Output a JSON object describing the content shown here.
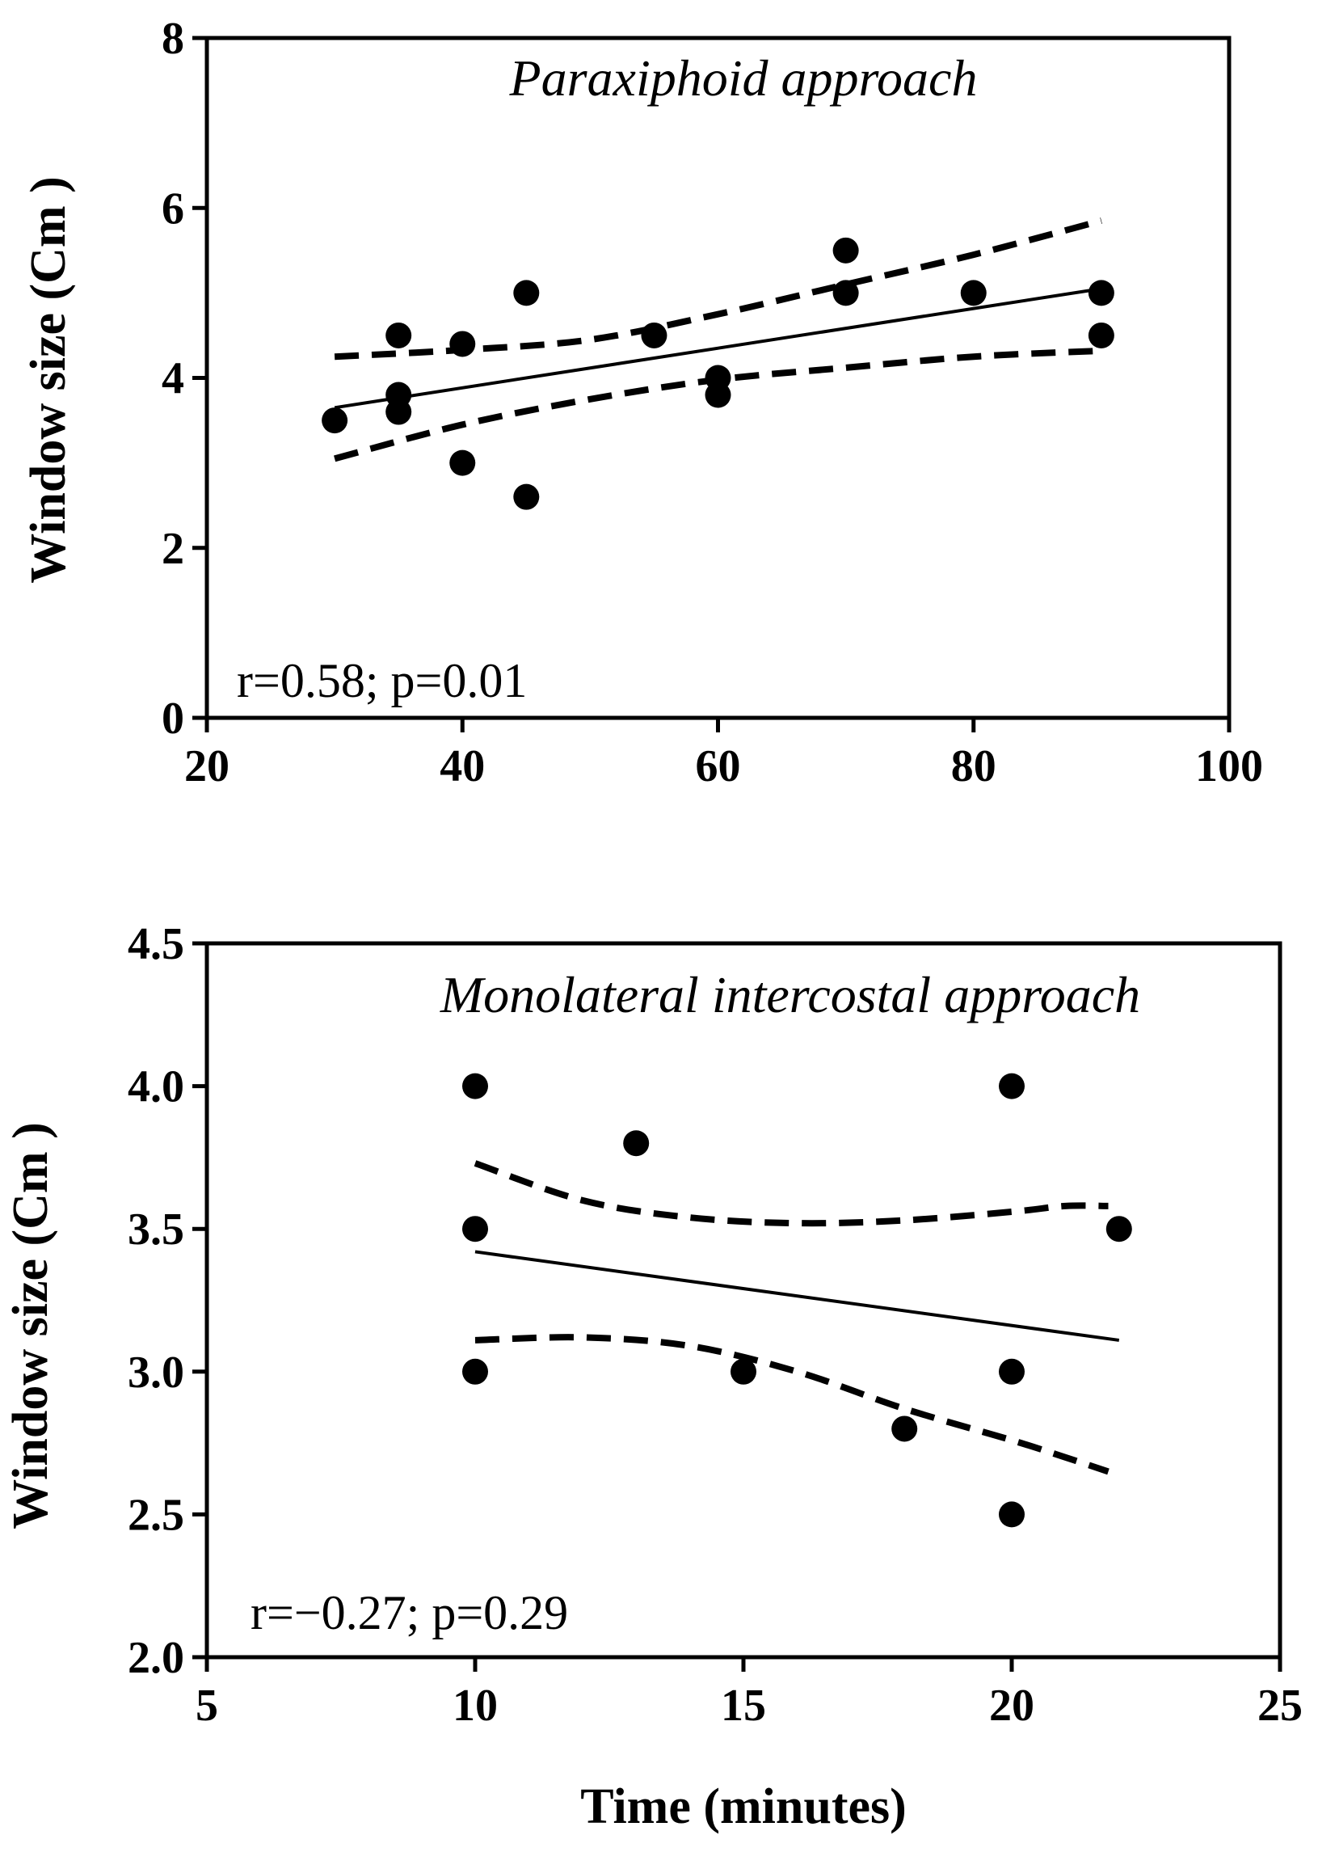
{
  "chart_data": [
    {
      "type": "scatter",
      "title": "Paraxiphoid approach",
      "xlabel": "",
      "ylabel": "Window size (Cm  )",
      "xlim": [
        20,
        100
      ],
      "ylim": [
        0,
        8
      ],
      "xticks": [
        20,
        40,
        60,
        80,
        100
      ],
      "yticks": [
        0,
        2,
        4,
        6,
        8
      ],
      "xtick_labels": [
        "20",
        "40",
        "60",
        "80",
        "100"
      ],
      "ytick_labels": [
        "0",
        "2",
        "4",
        "6",
        "8"
      ],
      "annotation": "r=0.58; p=0.01",
      "points": [
        [
          30,
          3.5
        ],
        [
          35,
          4.5
        ],
        [
          35,
          3.8
        ],
        [
          35,
          3.6
        ],
        [
          40,
          4.4
        ],
        [
          40,
          3.0
        ],
        [
          45,
          5.0
        ],
        [
          45,
          2.6
        ],
        [
          55,
          4.5
        ],
        [
          60,
          4.0
        ],
        [
          60,
          3.8
        ],
        [
          70,
          5.5
        ],
        [
          70,
          5.0
        ],
        [
          80,
          5.0
        ],
        [
          90,
          5.0
        ],
        [
          90,
          4.5
        ]
      ],
      "regression_line": [
        [
          30,
          3.65
        ],
        [
          90,
          5.05
        ]
      ],
      "ci_upper": [
        [
          30,
          4.25
        ],
        [
          40,
          4.33
        ],
        [
          50,
          4.45
        ],
        [
          60,
          4.75
        ],
        [
          70,
          5.1
        ],
        [
          80,
          5.45
        ],
        [
          90,
          5.85
        ]
      ],
      "ci_lower": [
        [
          30,
          3.05
        ],
        [
          40,
          3.45
        ],
        [
          50,
          3.75
        ],
        [
          60,
          3.98
        ],
        [
          70,
          4.12
        ],
        [
          80,
          4.25
        ],
        [
          90,
          4.32
        ]
      ]
    },
    {
      "type": "scatter",
      "title": "Monolateral intercostal approach",
      "xlabel": "Time (minutes)",
      "ylabel": "Window size (Cm  )",
      "xlim": [
        5,
        25
      ],
      "ylim": [
        2.0,
        4.5
      ],
      "xticks": [
        5,
        10,
        15,
        20,
        25
      ],
      "yticks": [
        2.0,
        2.5,
        3.0,
        3.5,
        4.0,
        4.5
      ],
      "xtick_labels": [
        "5",
        "10",
        "15",
        "20",
        "25"
      ],
      "ytick_labels": [
        "2.0",
        "2.5",
        "3.0",
        "3.5",
        "4.0",
        "4.5"
      ],
      "annotation": "r=−0.27; p=0.29",
      "points": [
        [
          10,
          4.0
        ],
        [
          10,
          3.5
        ],
        [
          10,
          3.0
        ],
        [
          13,
          3.8
        ],
        [
          15,
          3.0
        ],
        [
          18,
          2.8
        ],
        [
          20,
          4.0
        ],
        [
          20,
          3.0
        ],
        [
          20,
          2.5
        ],
        [
          22,
          3.5
        ]
      ],
      "regression_line": [
        [
          10,
          3.42
        ],
        [
          22,
          3.11
        ]
      ],
      "ci_upper": [
        [
          10,
          3.73
        ],
        [
          12,
          3.6
        ],
        [
          14,
          3.54
        ],
        [
          16,
          3.52
        ],
        [
          18,
          3.53
        ],
        [
          20,
          3.56
        ],
        [
          21,
          3.58
        ],
        [
          21.8,
          3.58
        ]
      ],
      "ci_lower": [
        [
          10,
          3.11
        ],
        [
          12,
          3.12
        ],
        [
          14,
          3.09
        ],
        [
          16,
          3.0
        ],
        [
          18,
          2.87
        ],
        [
          20,
          2.76
        ],
        [
          21,
          2.7
        ],
        [
          21.8,
          2.65
        ]
      ]
    }
  ]
}
